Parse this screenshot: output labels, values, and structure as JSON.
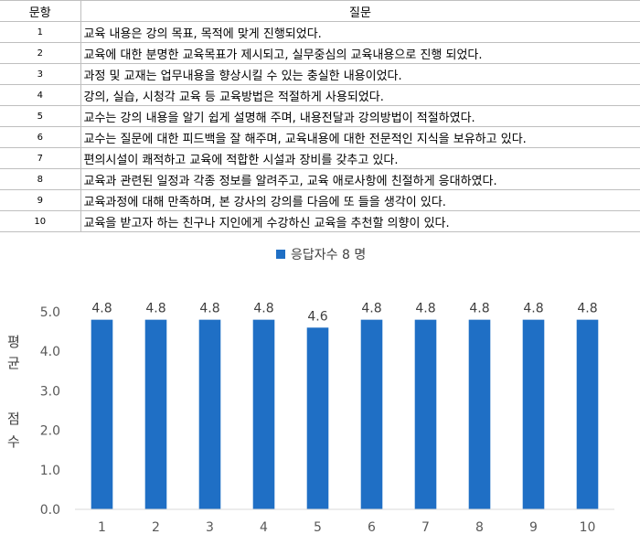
{
  "table": {
    "headers": [
      "문항",
      "질문"
    ],
    "rows": [
      {
        "num": "1",
        "question": "교육 내용은 강의 목표, 목적에 맞게 진행되었다."
      },
      {
        "num": "2",
        "question": "교육에 대한 분명한 교육목표가 제시되고, 실무중심의 교육내용으로 진행 되었다."
      },
      {
        "num": "3",
        "question": "과정 및 교재는 업무내용을 향상시킬 수 있는 충실한 내용이었다."
      },
      {
        "num": "4",
        "question": "강의, 실습, 시청각 교육 등 교육방법은 적절하게 사용되었다."
      },
      {
        "num": "5",
        "question": "교수는 강의 내용을 알기 쉽게 설명해 주며, 내용전달과 강의방법이 적절하였다."
      },
      {
        "num": "6",
        "question": "교수는 질문에 대한 피드백을 잘 해주며, 교육내용에 대한 전문적인 지식을 보유하고 있다."
      },
      {
        "num": "7",
        "question": "편의시설이 쾌적하고 교육에 적합한 시설과 장비를 갖추고 있다."
      },
      {
        "num": "8",
        "question": "교육과 관련된 일정과 각종 정보를 알려주고, 교육 애로사항에 친절하게 응대하였다."
      },
      {
        "num": "9",
        "question": "교육과정에 대해 만족하며, 본 강사의 강의를 다음에 또 들을 생각이 있다."
      },
      {
        "num": "10",
        "question": "교육을 받고자 하는 친구나 지인에게 수강하신 교육을 추천할 의향이 있다."
      }
    ]
  },
  "chart_data": {
    "type": "bar",
    "categories": [
      "1",
      "2",
      "3",
      "4",
      "5",
      "6",
      "7",
      "8",
      "9",
      "10"
    ],
    "series": [
      {
        "name": "응답자수 8 명",
        "values": [
          4.8,
          4.8,
          4.8,
          4.8,
          4.6,
          4.8,
          4.8,
          4.8,
          4.8,
          4.8
        ],
        "color": "#1f6fc5"
      }
    ],
    "data_labels": [
      "4.8",
      "4.8",
      "4.8",
      "4.8",
      "4.6",
      "4.8",
      "4.8",
      "4.8",
      "4.8",
      "4.8"
    ],
    "ylabel_lines": [
      "평",
      "균",
      "점",
      "수"
    ],
    "yticks": [
      "0.0",
      "1.0",
      "2.0",
      "3.0",
      "4.0",
      "5.0"
    ],
    "ylim": [
      0,
      5
    ],
    "grid": false,
    "legend": "top-center"
  }
}
